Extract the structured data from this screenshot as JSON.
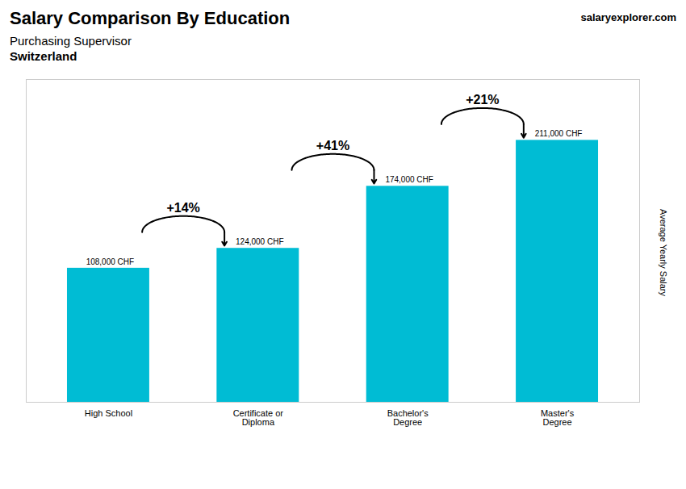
{
  "chart_data": {
    "type": "bar",
    "title": "Salary Comparison By Education",
    "subtitle": "Purchasing Supervisor",
    "location": "Switzerland",
    "watermark": "salaryexplorer.com",
    "ylabel": "Average Yearly Salary",
    "categories": [
      "High School",
      "Certificate or\nDiploma",
      "Bachelor's\nDegree",
      "Master's\nDegree"
    ],
    "values": [
      108000,
      124000,
      174000,
      211000
    ],
    "value_labels": [
      "108,000 CHF",
      "124,000 CHF",
      "174,000 CHF",
      "211,000 CHF"
    ],
    "data_labels": true,
    "annotations": [
      "+14%",
      "+41%",
      "+21%"
    ],
    "color": "#00bcd4",
    "ylim": [
      0,
      260000
    ],
    "tick_labels": "x"
  }
}
